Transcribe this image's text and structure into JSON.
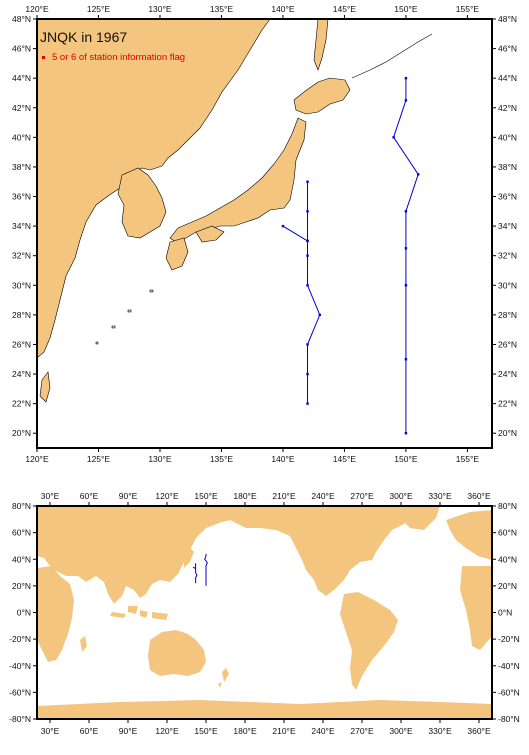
{
  "map_title": "JNQK in 1967",
  "legend": {
    "label": "5 or 6 of station information flag",
    "color": "#e00000"
  },
  "colors": {
    "land": "#f3c57f",
    "track": "#0000d8",
    "frame": "#000000"
  },
  "regional_map": {
    "lon_range": [
      120,
      157
    ],
    "lat_range": [
      19,
      48
    ],
    "lon_ticks": [
      "120°E",
      "125°E",
      "130°E",
      "135°E",
      "140°E",
      "145°E",
      "150°E",
      "155°E"
    ],
    "lat_ticks": [
      "20°N",
      "22°N",
      "24°N",
      "26°N",
      "28°N",
      "30°N",
      "32°N",
      "34°N",
      "36°N",
      "38°N",
      "40°N",
      "42°N",
      "44°N",
      "46°N",
      "48°N"
    ],
    "track_west": [
      [
        142,
        37
      ],
      [
        142,
        35
      ],
      [
        142,
        33
      ],
      [
        140,
        34
      ],
      [
        142,
        33
      ],
      [
        142,
        32
      ],
      [
        142,
        30
      ],
      [
        143,
        28
      ],
      [
        142,
        26
      ],
      [
        142,
        24
      ],
      [
        142,
        22
      ]
    ],
    "track_east": [
      [
        150,
        44
      ],
      [
        150,
        42.5
      ],
      [
        149,
        40
      ],
      [
        151,
        37.5
      ],
      [
        150,
        35
      ],
      [
        150,
        32.5
      ],
      [
        150,
        30
      ],
      [
        150,
        25
      ],
      [
        150,
        20
      ]
    ]
  },
  "world_map": {
    "lon_range": [
      20,
      370
    ],
    "lat_range": [
      -80,
      80
    ],
    "lon_ticks": [
      "30°E",
      "60°E",
      "90°E",
      "120°E",
      "150°E",
      "180°E",
      "210°E",
      "240°E",
      "270°E",
      "300°E",
      "330°E",
      "360°E"
    ],
    "lat_ticks": [
      "80°N",
      "60°N",
      "40°N",
      "20°N",
      "0°N",
      "-20°N",
      "-40°N",
      "-60°N",
      "-80°N"
    ]
  }
}
